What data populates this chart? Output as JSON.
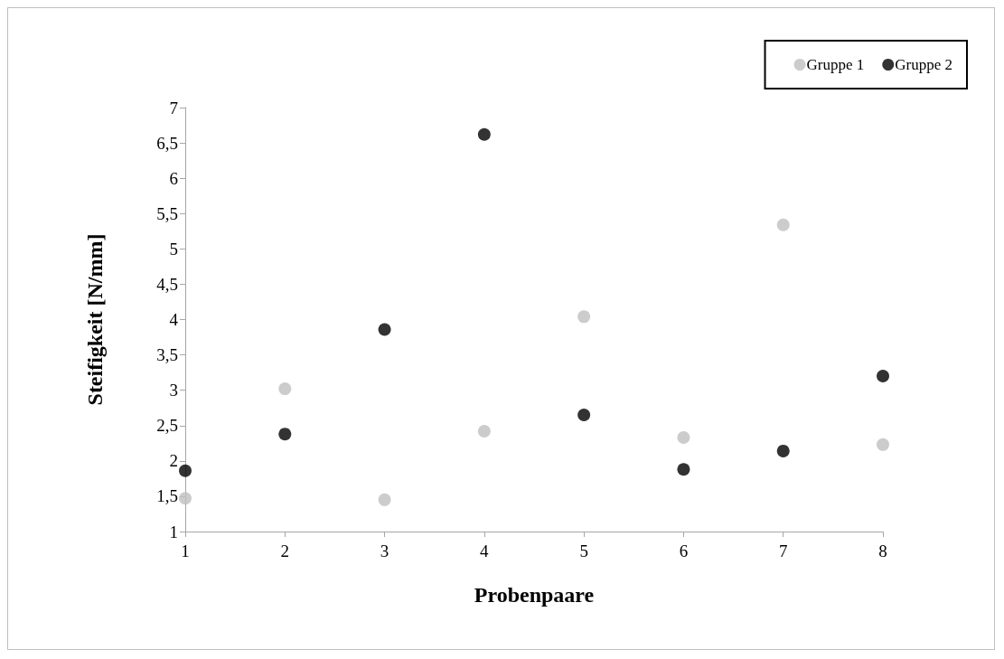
{
  "chart_data": {
    "type": "scatter",
    "xlabel": "Probenpaare",
    "ylabel": "Steifigkeit [N/mm]",
    "x": [
      1,
      2,
      3,
      4,
      5,
      6,
      7,
      8
    ],
    "series": [
      {
        "name": "Gruppe 1",
        "color": "#bfbfbf",
        "values": [
          1.47,
          3.02,
          1.45,
          2.42,
          4.04,
          2.33,
          5.34,
          2.23
        ]
      },
      {
        "name": "Gruppe 2",
        "color": "#000000",
        "values": [
          1.86,
          2.38,
          3.86,
          6.62,
          2.65,
          1.88,
          2.14,
          3.2
        ]
      }
    ],
    "xlim": [
      1,
      8
    ],
    "xticks": [
      1,
      2,
      3,
      4,
      5,
      6,
      7,
      8
    ],
    "ylim": [
      1,
      7
    ],
    "yticks": [
      1,
      {
        "value": 1.5,
        "label": "1,5"
      },
      2,
      {
        "value": 2.5,
        "label": "2,5"
      },
      3,
      {
        "value": 3.5,
        "label": "3,5"
      },
      4,
      {
        "value": 4.5,
        "label": "4,5"
      },
      5,
      {
        "value": 5.5,
        "label": "5,5"
      },
      6,
      {
        "value": 6.5,
        "label": "6,5"
      },
      7
    ],
    "grid": false,
    "legend": "top right",
    "marker": "circle"
  }
}
